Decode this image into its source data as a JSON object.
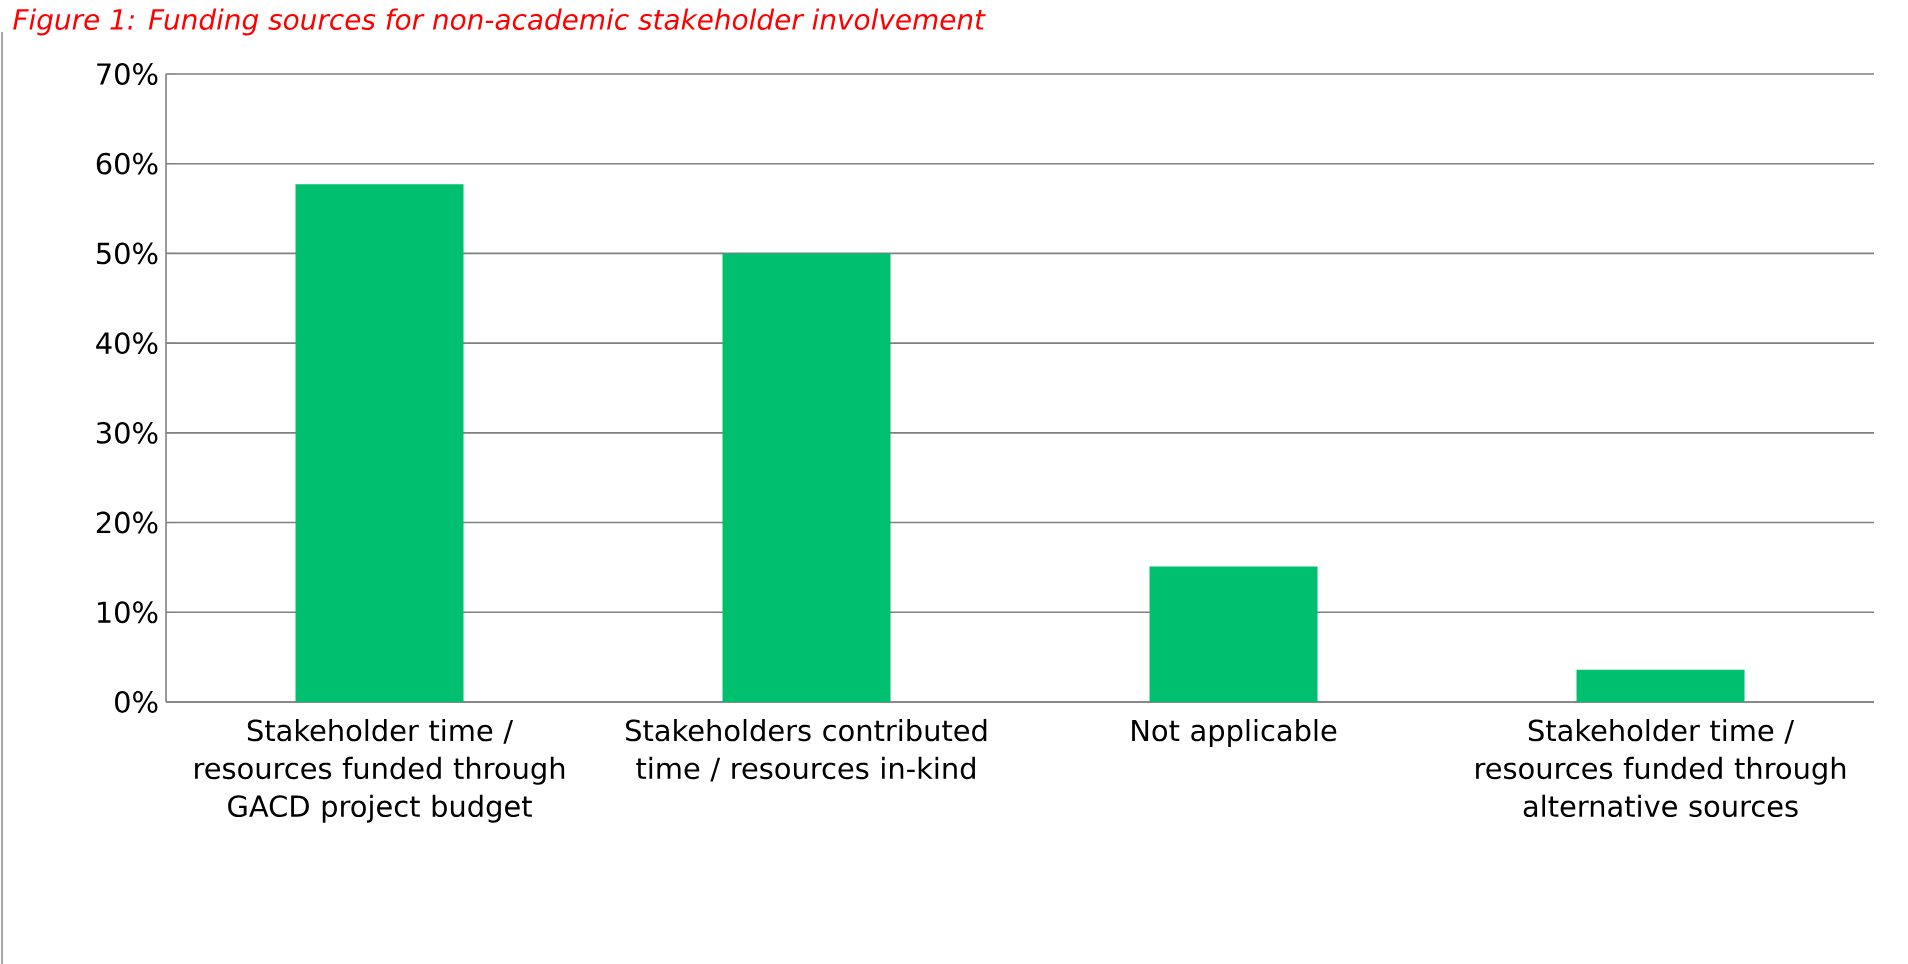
{
  "chart_data": {
    "type": "bar",
    "title": "Figure 1: Funding sources for non-academic stakeholder involvement",
    "categories": [
      "Stakeholder time / resources funded through GACD project budget",
      "Stakeholders contributed time / resources in-kind",
      "Not applicable",
      "Stakeholder time / resources funded through alternative sources"
    ],
    "values": [
      57.7,
      50,
      15.1,
      3.6
    ],
    "color": "#00bf6f",
    "ylim": [
      0,
      70
    ],
    "yticks": [
      {
        "value": 0,
        "label": "0%"
      },
      {
        "value": 10,
        "label": "10%"
      },
      {
        "value": 20,
        "label": "20%"
      },
      {
        "value": 30,
        "label": "30%"
      },
      {
        "value": 40,
        "label": "40%"
      },
      {
        "value": 50,
        "label": "50%"
      },
      {
        "value": 60,
        "label": "60%"
      },
      {
        "value": 70,
        "label": "70%"
      }
    ],
    "grid": "y"
  }
}
